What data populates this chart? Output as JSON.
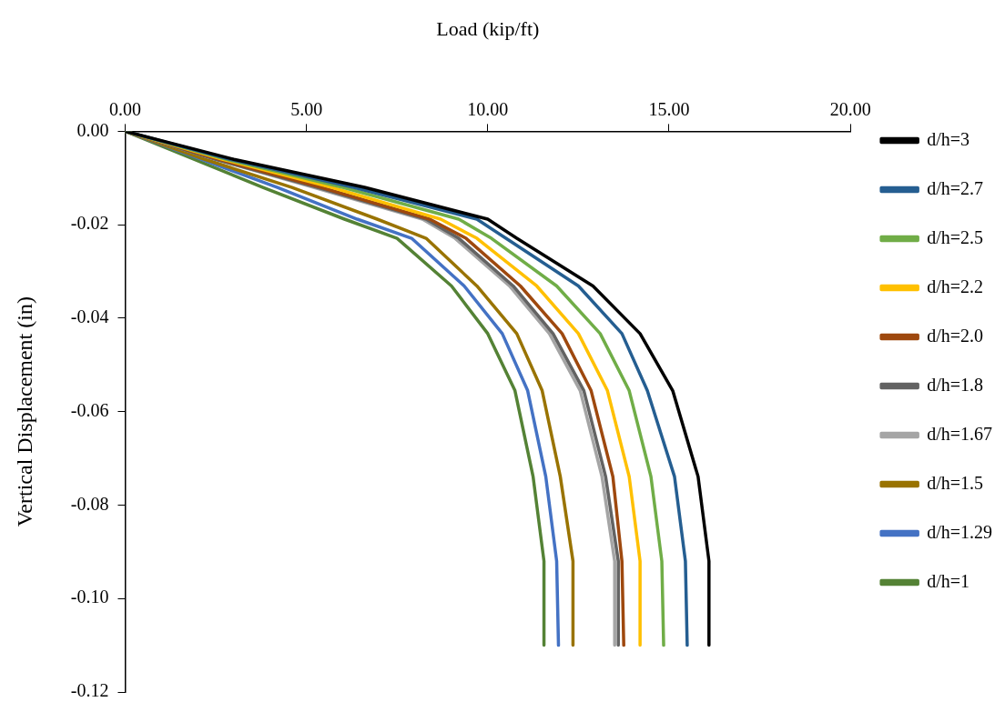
{
  "chart_data": {
    "type": "line",
    "xlabel": "Load (kip/ft)",
    "ylabel": "Vertical Displacement (in)",
    "xlim": [
      0,
      20
    ],
    "xticks": [
      {
        "value": 0,
        "label": "0.00"
      },
      {
        "value": 5,
        "label": "5.00"
      },
      {
        "value": 10,
        "label": "10.00"
      },
      {
        "value": 15,
        "label": "15.00"
      },
      {
        "value": 20,
        "label": "20.00"
      }
    ],
    "ylim": [
      -0.12,
      0
    ],
    "yticks": [
      {
        "value": -0.12,
        "label": "-0.12"
      },
      {
        "value": -0.1,
        "label": "-0.10"
      },
      {
        "value": -0.08,
        "label": "-0.08"
      },
      {
        "value": -0.06,
        "label": "-0.06"
      },
      {
        "value": -0.04,
        "label": "-0.04"
      },
      {
        "value": -0.02,
        "label": "-0.02"
      },
      {
        "value": 0,
        "label": "0.00"
      }
    ],
    "grid": false,
    "legend": "right",
    "marker": "none",
    "line_style": "solid",
    "series": [
      {
        "name": "d/h=3",
        "color": "#000000",
        "x": [
          0,
          3.0,
          6.6,
          10.0,
          10.8,
          12.9,
          14.2,
          15.1,
          15.8,
          16.1,
          16.1
        ],
        "values": [
          0,
          -0.006,
          -0.012,
          -0.0188,
          -0.0229,
          -0.0331,
          -0.0433,
          -0.0555,
          -0.0739,
          -0.092,
          -0.11
        ]
      },
      {
        "name": "d/h=2.7",
        "color": "#255e91",
        "x": [
          0,
          2.9,
          6.3,
          9.7,
          10.5,
          12.5,
          13.7,
          14.4,
          15.15,
          15.45,
          15.5
        ],
        "values": [
          0,
          -0.006,
          -0.012,
          -0.0188,
          -0.0229,
          -0.0331,
          -0.0433,
          -0.0555,
          -0.0739,
          -0.092,
          -0.11
        ]
      },
      {
        "name": "d/h=2.5",
        "color": "#70ad47",
        "x": [
          0,
          2.8,
          6.0,
          9.2,
          10.1,
          11.9,
          13.1,
          13.9,
          14.5,
          14.8,
          14.85
        ],
        "values": [
          0,
          -0.006,
          -0.012,
          -0.0188,
          -0.0229,
          -0.0331,
          -0.0433,
          -0.0555,
          -0.0739,
          -0.092,
          -0.11
        ]
      },
      {
        "name": "d/h=2.2",
        "color": "#ffc000",
        "x": [
          0,
          2.7,
          5.7,
          8.7,
          9.7,
          11.35,
          12.5,
          13.3,
          13.9,
          14.2,
          14.2
        ],
        "values": [
          0,
          -0.006,
          -0.012,
          -0.0188,
          -0.0229,
          -0.0331,
          -0.0433,
          -0.0555,
          -0.0739,
          -0.092,
          -0.11
        ]
      },
      {
        "name": "d/h=2.0",
        "color": "#9e480e",
        "x": [
          0,
          2.6,
          5.4,
          8.4,
          9.4,
          10.9,
          12.05,
          12.85,
          13.45,
          13.7,
          13.75
        ],
        "values": [
          0,
          -0.006,
          -0.012,
          -0.0188,
          -0.0229,
          -0.0331,
          -0.0433,
          -0.0555,
          -0.0739,
          -0.092,
          -0.11
        ]
      },
      {
        "name": "d/h=1.8",
        "color": "#636363",
        "x": [
          0,
          2.5,
          5.3,
          8.3,
          9.2,
          10.7,
          11.8,
          12.65,
          13.25,
          13.6,
          13.6
        ],
        "values": [
          0,
          -0.006,
          -0.012,
          -0.0188,
          -0.0229,
          -0.0331,
          -0.0433,
          -0.0555,
          -0.0739,
          -0.092,
          -0.11
        ]
      },
      {
        "name": "d/h=1.67",
        "color": "#a5a5a5",
        "x": [
          0,
          2.5,
          5.2,
          8.2,
          9.1,
          10.6,
          11.7,
          12.55,
          13.15,
          13.5,
          13.5
        ],
        "values": [
          0,
          -0.006,
          -0.012,
          -0.0188,
          -0.0229,
          -0.0331,
          -0.0433,
          -0.0555,
          -0.0739,
          -0.092,
          -0.11
        ]
      },
      {
        "name": "d/h=1.5",
        "color": "#997300",
        "x": [
          0,
          2.2,
          4.6,
          6.95,
          8.3,
          9.7,
          10.8,
          11.5,
          12.0,
          12.35,
          12.35
        ],
        "values": [
          0,
          -0.006,
          -0.012,
          -0.0188,
          -0.0229,
          -0.0331,
          -0.0433,
          -0.0555,
          -0.0739,
          -0.092,
          -0.11
        ]
      },
      {
        "name": "d/h=1.29",
        "color": "#4472c4",
        "x": [
          0,
          2.1,
          4.2,
          6.4,
          7.9,
          9.35,
          10.4,
          11.1,
          11.6,
          11.9,
          11.95
        ],
        "values": [
          0,
          -0.006,
          -0.012,
          -0.0188,
          -0.0229,
          -0.0331,
          -0.0433,
          -0.0555,
          -0.0739,
          -0.092,
          -0.11
        ]
      },
      {
        "name": "d/h=1",
        "color": "#548235",
        "x": [
          0,
          1.9,
          3.8,
          6.05,
          7.5,
          9.0,
          10.0,
          10.75,
          11.25,
          11.55,
          11.55
        ],
        "values": [
          0,
          -0.006,
          -0.012,
          -0.0188,
          -0.0229,
          -0.0331,
          -0.0433,
          -0.0555,
          -0.0739,
          -0.092,
          -0.11
        ]
      }
    ]
  }
}
